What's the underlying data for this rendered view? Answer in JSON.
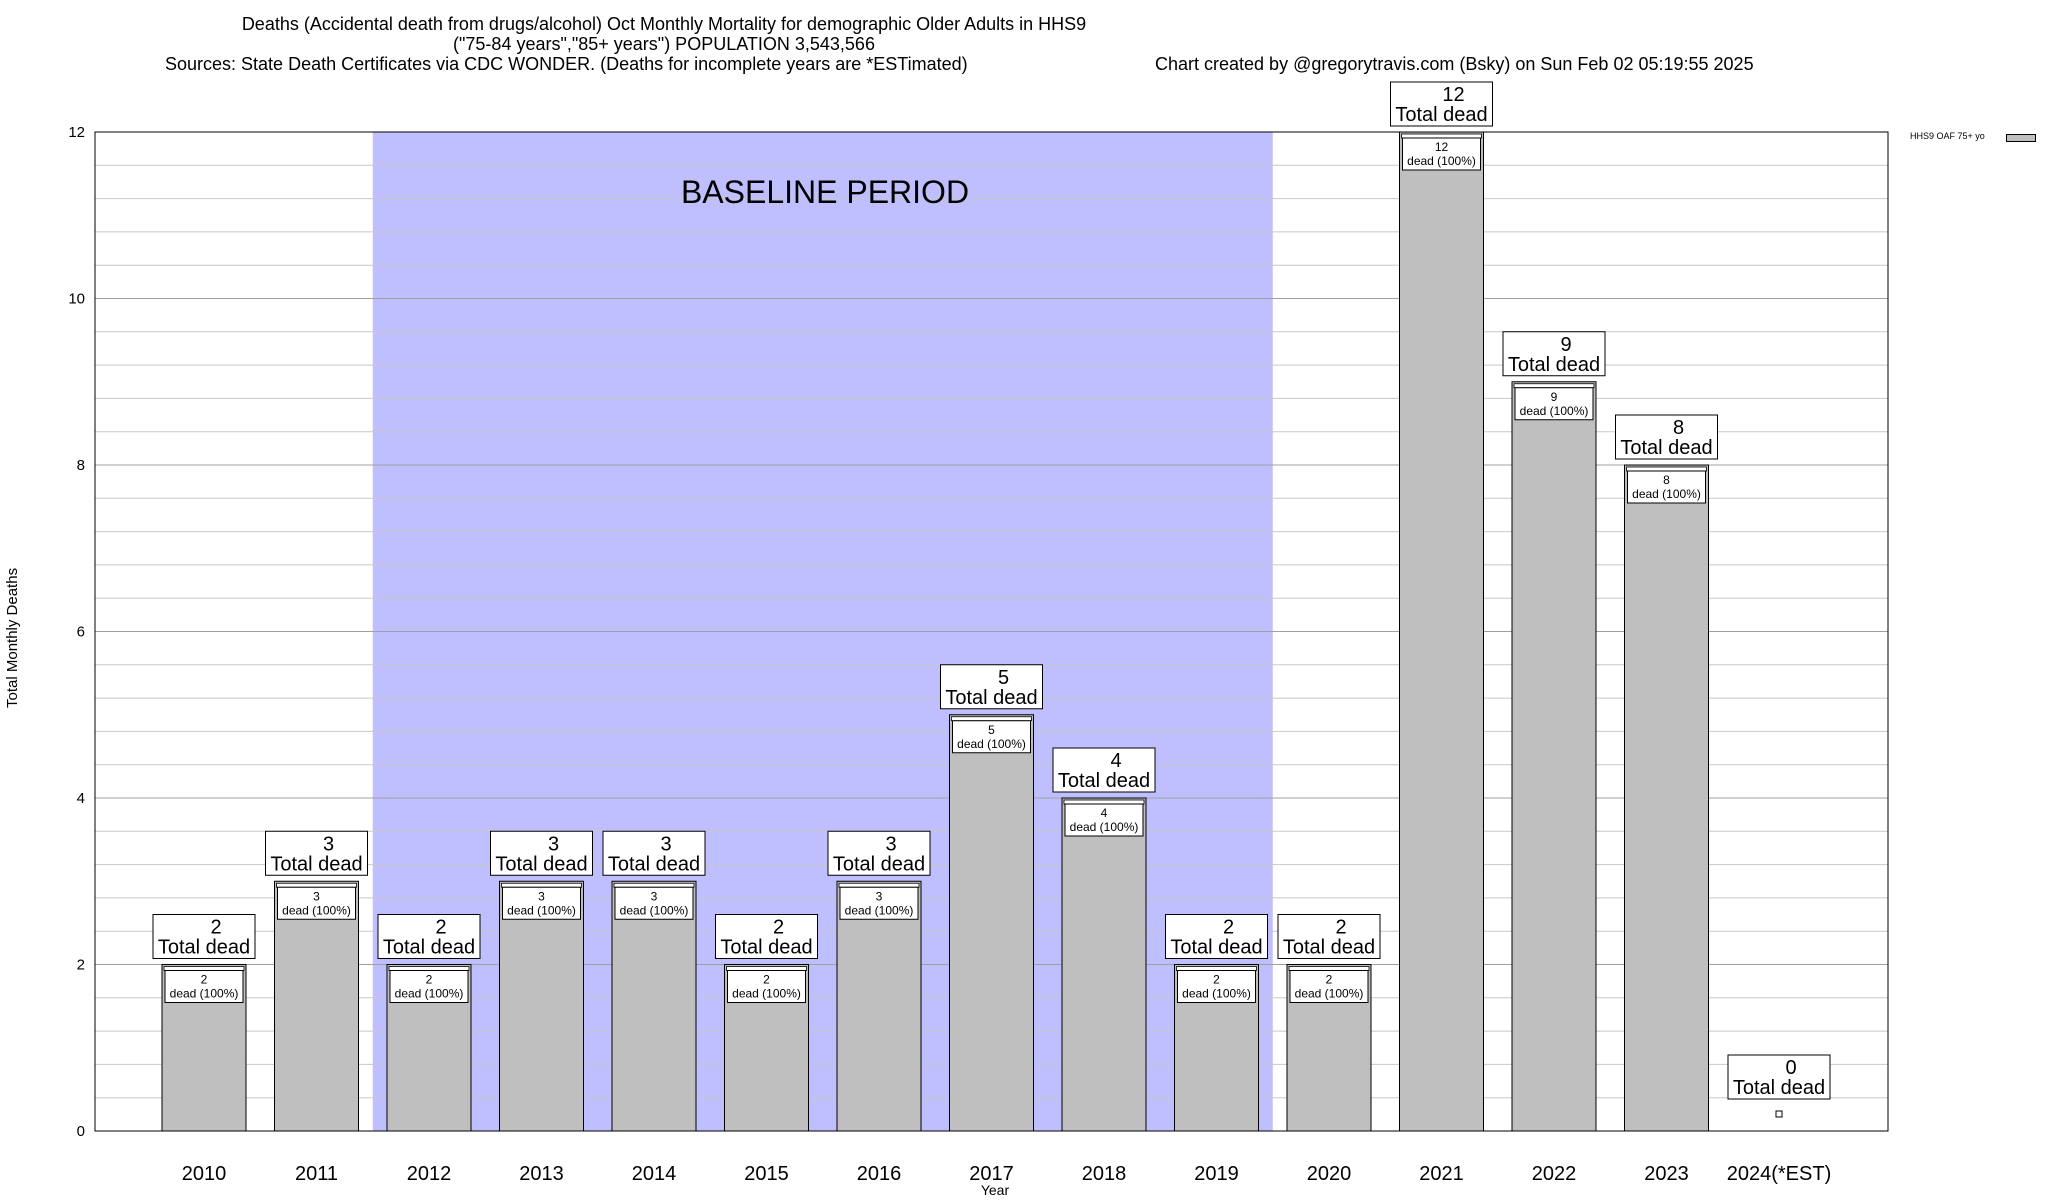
{
  "header": {
    "title_line1": "Deaths (Accidental death from drugs/alcohol) Oct Monthly Mortality for demographic Older Adults in HHS9",
    "title_line2": "(\"75-84 years\",\"85+ years\") POPULATION 3,543,566",
    "sources": "Sources: State Death Certificates via CDC WONDER. (Deaths for incomplete years are *ESTimated)",
    "credit": "Chart created by @gregorytravis.com (Bsky) on Sun Feb 02 05:19:55 2025"
  },
  "chart_data": {
    "type": "bar",
    "title": "Deaths (Accidental death from drugs/alcohol) Oct Monthly Mortality for demographic Older Adults in HHS9",
    "xlabel": "Year",
    "ylabel": "Total Monthly Deaths",
    "ylim": [
      0,
      12
    ],
    "y_ticks": [
      "0",
      "2",
      "4",
      "6",
      "8",
      "10",
      "12"
    ],
    "grid": true,
    "legend_position": "top-right",
    "categories": [
      "2010",
      "2011",
      "2012",
      "2013",
      "2014",
      "2015",
      "2016",
      "2017",
      "2018",
      "2019",
      "2020",
      "2021",
      "2022",
      "2023",
      "2024(*EST)"
    ],
    "series": [
      {
        "name": "HHS9 OAF 75+ yo",
        "color": "#bfbfbf",
        "values": [
          2,
          3,
          2,
          3,
          3,
          2,
          3,
          5,
          4,
          2,
          2,
          12,
          9,
          8,
          0
        ]
      }
    ],
    "total_labels": [
      "2",
      "3",
      "2",
      "3",
      "3",
      "2",
      "3",
      "5",
      "4",
      "2",
      "2",
      "12",
      "9",
      "8",
      "0"
    ],
    "total_suffix": "Total dead",
    "inner_label_suffix": "dead (100%)",
    "baseline": {
      "label": "BASELINE PERIOD",
      "start": "2012",
      "end": "2019",
      "color": "#bfbfff"
    }
  }
}
